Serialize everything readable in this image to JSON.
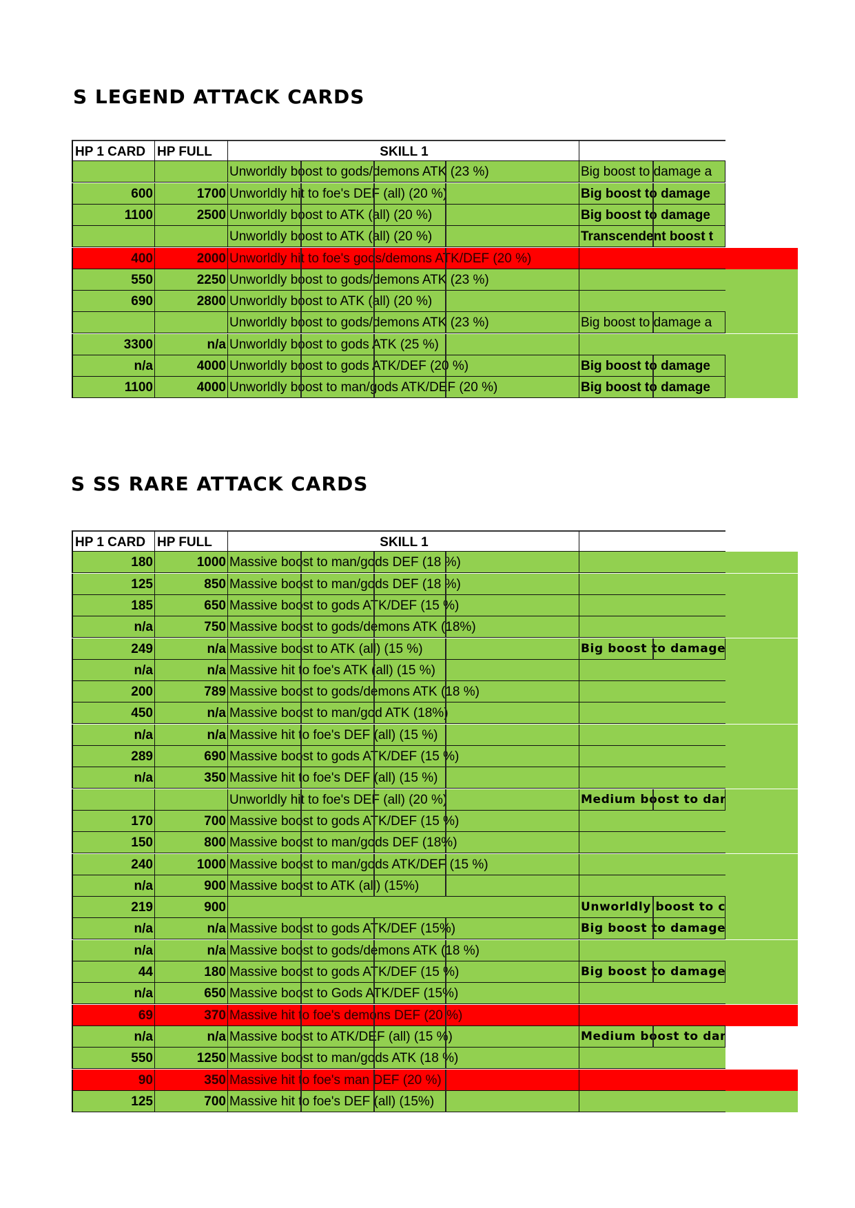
{
  "colors": {
    "green": "#92d050",
    "red": "#ff0000"
  },
  "tables": [
    {
      "title": "S LEGEND ATTACK CARDS",
      "headers": {
        "hp1": "HP 1 CARD",
        "hpfull": "HP FULL",
        "skill1": "SKILL 1",
        "col4": ""
      },
      "rows": [
        {
          "hp1": "",
          "hpfull": "",
          "skill": "Unworldly boost to gods/demons ATK (23 %)",
          "skill2": "Big boost to damage a",
          "skill2_bold": false,
          "color": "green",
          "ext": "none"
        },
        {
          "hp1": "600",
          "hpfull": "1700",
          "skill": "Unworldly hit to foe's DEF (all) (20 %)",
          "skill2": "Big boost to damage",
          "skill2_bold": true,
          "color": "green",
          "ext": "none"
        },
        {
          "hp1": "1100",
          "hpfull": "2500",
          "skill": "Unworldly boost to ATK (all) (20 %)",
          "skill2": "Big boost to damage",
          "skill2_bold": true,
          "color": "green",
          "ext": "none"
        },
        {
          "hp1": "",
          "hpfull": "",
          "skill": "Unworldly boost to ATK (all) (20 %)",
          "skill2": "Transcendent boost t",
          "skill2_bold": true,
          "color": "green",
          "ext": "none"
        },
        {
          "hp1": "400",
          "hpfull": "2000",
          "skill": "Unworldly hit to foe's gods/demons ATK/DEF (20 %)",
          "skill2": "",
          "skill2_bold": false,
          "color": "red",
          "ext": "red"
        },
        {
          "hp1": "550",
          "hpfull": "2250",
          "skill": "Unworldly boost to gods/demons ATK (23 %)",
          "skill2": "",
          "skill2_bold": false,
          "color": "green",
          "ext": "green"
        },
        {
          "hp1": "690",
          "hpfull": "2800",
          "skill": "Unworldly boost to ATK (all) (20 %)",
          "skill2": "",
          "skill2_bold": false,
          "color": "green",
          "ext": "green"
        },
        {
          "hp1": "",
          "hpfull": "",
          "skill": "Unworldly boost to gods/demons ATK (23 %)",
          "skill2": "Big boost to damage a",
          "skill2_bold": false,
          "color": "green",
          "ext": "green"
        },
        {
          "hp1": "3300",
          "hpfull": "n/a",
          "skill": "Unworldly boost to gods ATK (25 %)",
          "skill2": "",
          "skill2_bold": false,
          "color": "green",
          "ext": "green"
        },
        {
          "hp1": "n/a",
          "hpfull": "4000",
          "skill": "Unworldly boost to gods ATK/DEF (20 %)",
          "skill2": "Big boost to damage",
          "skill2_bold": true,
          "color": "green",
          "ext": "green"
        },
        {
          "hp1": "1100",
          "hpfull": "4000",
          "skill": "Unworldly boost to man/gods ATK/DEF (20 %)",
          "skill2": "Big boost to damage",
          "skill2_bold": true,
          "color": "green",
          "ext": "green"
        }
      ]
    },
    {
      "title": "S SS RARE ATTACK CARDS",
      "headers": {
        "hp1": "HP 1 CARD",
        "hpfull": "HP FULL",
        "skill1": "SKILL 1",
        "col4": ""
      },
      "rows": [
        {
          "hp1": "180",
          "hpfull": "1000",
          "skill": "Massive boost to man/gods DEF (18 %)",
          "skill2": "",
          "color": "green",
          "ext": "green"
        },
        {
          "hp1": "125",
          "hpfull": "850",
          "skill": "Massive boost to man/gods DEF (18 %)",
          "skill2": "",
          "color": "green",
          "ext": "green"
        },
        {
          "hp1": "185",
          "hpfull": "650",
          "skill": "Massive boost to gods ATK/DEF (15 %)",
          "skill2": "",
          "color": "green",
          "ext": "green"
        },
        {
          "hp1": "n/a",
          "hpfull": "750",
          "skill": "Massive boost to gods/demons ATK (18%)",
          "skill2": "",
          "color": "green",
          "ext": "green"
        },
        {
          "hp1": "249",
          "hpfull": "n/a",
          "skill": "Massive boost to ATK (all) (15 %)",
          "skill2": "Big boost to damage",
          "color": "green",
          "ext": "green"
        },
        {
          "hp1": "n/a",
          "hpfull": "n/a",
          "skill": "Massive hit to foe's ATK (all) (15 %)",
          "skill2": "",
          "color": "green",
          "ext": "green"
        },
        {
          "hp1": "200",
          "hpfull": "789",
          "skill": "Massive boost to gods/demons ATK (18 %)",
          "skill2": "",
          "color": "green",
          "ext": "green"
        },
        {
          "hp1": "450",
          "hpfull": "n/a",
          "skill": "Massive boost to man/god ATK (18%)",
          "skill2": "",
          "color": "green",
          "ext": "green"
        },
        {
          "hp1": "n/a",
          "hpfull": "n/a",
          "skill": "Massive hit to foe's DEF (all) (15 %)",
          "skill2": "",
          "color": "green",
          "ext": "green"
        },
        {
          "hp1": "289",
          "hpfull": "690",
          "skill": "Massive boost to gods ATK/DEF (15 %)",
          "skill2": "",
          "color": "green",
          "ext": "green"
        },
        {
          "hp1": "n/a",
          "hpfull": "350",
          "skill": "Massive hit to foe's DEF (all) (15 %)",
          "skill2": "",
          "color": "green",
          "ext": "green"
        },
        {
          "hp1": "",
          "hpfull": "",
          "skill": "Unworldly hit to foe's DEF (all) (20 %)",
          "skill2": "Medium boost to dam",
          "color": "green",
          "ext": "green"
        },
        {
          "hp1": "170",
          "hpfull": "700",
          "skill": "Massive boost to gods ATK/DEF (15 %)",
          "skill2": "",
          "color": "green",
          "ext": "green"
        },
        {
          "hp1": "150",
          "hpfull": "800",
          "skill": "Massive boost to man/gods DEF (18%)",
          "skill2": "",
          "color": "green",
          "ext": "green"
        },
        {
          "hp1": "240",
          "hpfull": "1000",
          "skill": "Massive boost to man/gods ATK/DEF (15 %)",
          "skill2": "",
          "color": "green",
          "ext": "green"
        },
        {
          "hp1": "n/a",
          "hpfull": "900",
          "skill": "Massive boost to ATK (all) (15%)",
          "skill2": "",
          "color": "green",
          "ext": "green"
        },
        {
          "hp1": "219",
          "hpfull": "900",
          "skill": "",
          "skill2": "Unworldly boost to c",
          "color": "green",
          "ext": "green"
        },
        {
          "hp1": "n/a",
          "hpfull": "n/a",
          "skill": "Massive boost to gods ATK/DEF (15%)",
          "skill2": "Big boost to damage",
          "color": "green",
          "ext": "green"
        },
        {
          "hp1": "n/a",
          "hpfull": "n/a",
          "skill": "Massive boost to gods/demons ATK (18 %)",
          "skill2": "",
          "color": "green",
          "ext": "green"
        },
        {
          "hp1": "44",
          "hpfull": "180",
          "skill": "Massive boost to gods ATK/DEF (15 %)",
          "skill2": "Big boost to damage",
          "color": "green",
          "ext": "green"
        },
        {
          "hp1": "n/a",
          "hpfull": "650",
          "skill": "Massive boost to Gods ATK/DEF (15%)",
          "skill2": "",
          "color": "green",
          "ext": "green"
        },
        {
          "hp1": "69",
          "hpfull": "370",
          "skill": "Massive hit to foe's demons DEF (20 %)",
          "skill2": "",
          "color": "red",
          "ext": "red"
        },
        {
          "hp1": "n/a",
          "hpfull": "n/a",
          "skill": "Massive boost to ATK/DEF (all) (15 %)",
          "skill2": "Medium boost to dam",
          "color": "green",
          "ext": "none"
        },
        {
          "hp1": "550",
          "hpfull": "1250",
          "skill": "Massive boost to man/gods ATK (18 %)",
          "skill2": "",
          "color": "green",
          "ext": "none"
        },
        {
          "hp1": "90",
          "hpfull": "350",
          "skill": "Massive hit to foe's man DEF (20 %)",
          "skill2": "",
          "color": "red",
          "ext": "red"
        },
        {
          "hp1": "125",
          "hpfull": "700",
          "skill": "Massive hit to foe's DEF (all) (15%)",
          "skill2": "",
          "color": "green",
          "ext": "green"
        }
      ]
    }
  ]
}
